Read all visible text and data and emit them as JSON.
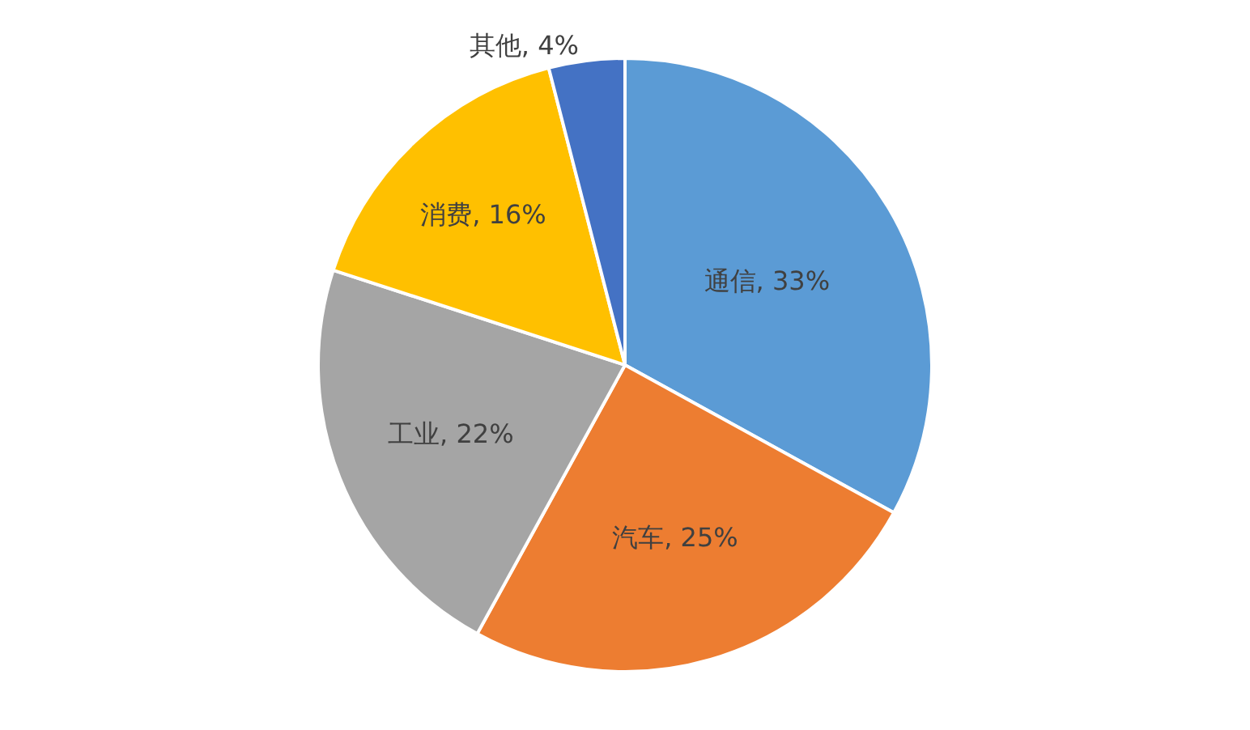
{
  "chart_data": {
    "type": "pie",
    "categories": [
      "通信",
      "汽车",
      "工业",
      "消费",
      "其他"
    ],
    "values": [
      33,
      25,
      22,
      16,
      4
    ],
    "value_labels": [
      "33%",
      "25%",
      "22%",
      "16%",
      "4%"
    ],
    "colors": [
      "#5b9bd5",
      "#ed7d31",
      "#a5a5a5",
      "#ffc000",
      "#4472c4"
    ],
    "legend": false
  }
}
